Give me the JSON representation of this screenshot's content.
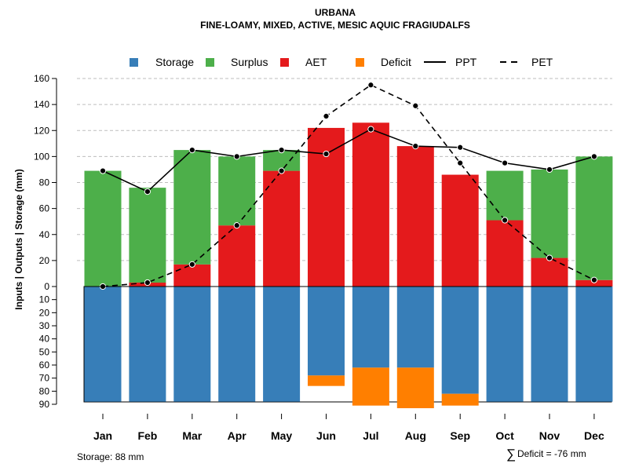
{
  "chart_data": {
    "type": "bar",
    "title": "URBANA",
    "subtitle": "FINE-LOAMY, MIXED, ACTIVE, MESIC AQUIC FRAGIUDALFS",
    "ylabel": "Inputs | Outputs | Storage    (mm)",
    "upper_ylim": [
      0,
      160
    ],
    "lower_ylim": [
      0,
      90
    ],
    "upper_ticks": [
      "160",
      "140",
      "120",
      "100",
      "80",
      "60",
      "40",
      "20",
      "0"
    ],
    "lower_ticks": [
      "10",
      "20",
      "30",
      "40",
      "50",
      "60",
      "70",
      "80",
      "90"
    ],
    "categories": [
      "Jan",
      "Feb",
      "Mar",
      "Apr",
      "May",
      "Jun",
      "Jul",
      "Aug",
      "Sep",
      "Oct",
      "Nov",
      "Dec"
    ],
    "series": [
      {
        "name": "Storage",
        "color": "#377EB8",
        "values": [
          88,
          88,
          88,
          88,
          88,
          68,
          62,
          62,
          82,
          88,
          88,
          88
        ]
      },
      {
        "name": "Surplus",
        "color": "#4DAF4A",
        "values": [
          89,
          73,
          88,
          53,
          16,
          0,
          0,
          0,
          0,
          38,
          68,
          95
        ]
      },
      {
        "name": "AET",
        "color": "#E41A1C",
        "values": [
          0,
          3,
          17,
          47,
          89,
          122,
          126,
          108,
          86,
          51,
          22,
          5
        ]
      },
      {
        "name": "Deficit",
        "color": "#FF7F00",
        "values": [
          0,
          0,
          0,
          0,
          0,
          8,
          29,
          31,
          9,
          0,
          0,
          0
        ]
      },
      {
        "name": "PPT",
        "style": "solid",
        "values": [
          89,
          73,
          105,
          100,
          105,
          102,
          121,
          108,
          107,
          95,
          90,
          100
        ]
      },
      {
        "name": "PET",
        "style": "dashed",
        "values": [
          0,
          3,
          17,
          47,
          89,
          131,
          155,
          139,
          95,
          51,
          22,
          5
        ]
      }
    ],
    "legend": [
      "Storage",
      "Surplus",
      "AET",
      "Deficit",
      "PPT",
      "PET"
    ],
    "legend_position": "top"
  },
  "footer": {
    "storage_note": "Storage: 88 mm",
    "deficit_symbol": "∑",
    "deficit_note": "Deficit = -76 mm"
  }
}
